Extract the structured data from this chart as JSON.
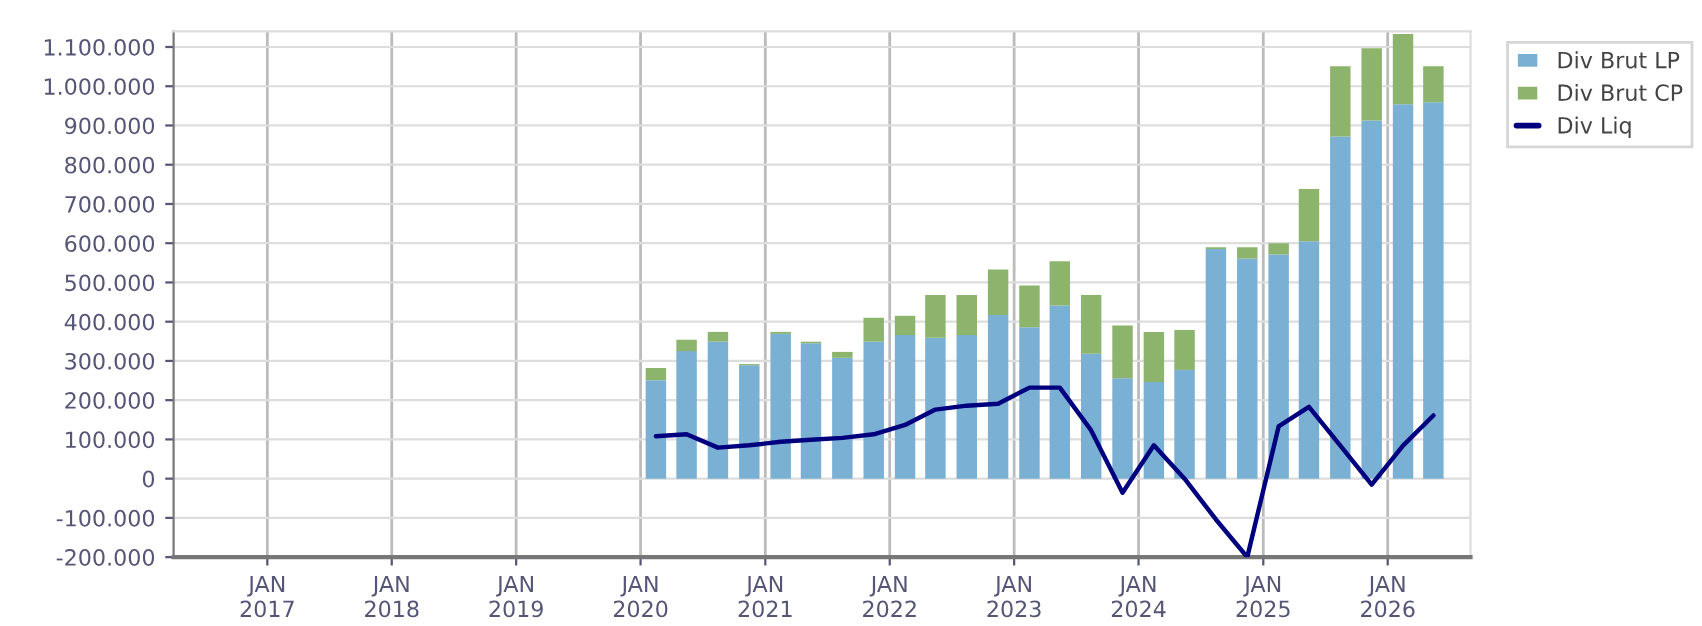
{
  "chart_data": {
    "type": "bar",
    "stacked": true,
    "x": [
      "2020-02-15",
      "2020-05-15",
      "2020-08-15",
      "2020-11-15",
      "2021-02-15",
      "2021-05-15",
      "2021-08-15",
      "2021-11-15",
      "2022-02-15",
      "2022-05-15",
      "2022-08-15",
      "2022-11-15",
      "2023-02-15",
      "2023-05-15",
      "2023-08-15",
      "2023-11-15",
      "2024-02-15",
      "2024-05-15",
      "2024-08-15",
      "2024-11-15",
      "2025-02-15",
      "2025-05-15",
      "2025-08-15",
      "2025-11-15",
      "2026-02-15",
      "2026-05-15"
    ],
    "series": [
      {
        "name": "Div Brut LP",
        "color": "#7ab0d4",
        "values": [
          251000,
          325000,
          349000,
          289000,
          369000,
          345000,
          308000,
          349000,
          366000,
          359000,
          366000,
          417000,
          386000,
          441000,
          318000,
          256000,
          246000,
          277000,
          585000,
          561000,
          571000,
          605000,
          872000,
          913000,
          954000,
          959000
        ]
      },
      {
        "name": "Div Brut CP",
        "color": "#8cb46c",
        "values": [
          31000,
          29000,
          25000,
          3000,
          5000,
          4000,
          15000,
          61000,
          49000,
          109000,
          102000,
          116000,
          106000,
          113000,
          150000,
          134000,
          128000,
          102000,
          5000,
          29000,
          29000,
          133000,
          179000,
          184000,
          179000,
          92000
        ]
      },
      {
        "name": "Div Liq",
        "type": "line",
        "color": "#00007f",
        "values": [
          108000,
          113000,
          79000,
          85000,
          94000,
          99000,
          104000,
          113000,
          137000,
          176000,
          186000,
          191000,
          232000,
          232000,
          123000,
          -36000,
          85000,
          0,
          -104000,
          -200000,
          133000,
          183000,
          84000,
          -15000,
          84000,
          161000
        ]
      }
    ],
    "xlim": [
      "2016-04-01",
      "2026-09-01"
    ],
    "xticks": [
      {
        "value": "2017-01-01",
        "label": "JAN\n2017"
      },
      {
        "value": "2018-01-01",
        "label": "JAN\n2018"
      },
      {
        "value": "2019-01-01",
        "label": "JAN\n2019"
      },
      {
        "value": "2020-01-01",
        "label": "JAN\n2020"
      },
      {
        "value": "2021-01-01",
        "label": "JAN\n2021"
      },
      {
        "value": "2022-01-01",
        "label": "JAN\n2022"
      },
      {
        "value": "2023-01-01",
        "label": "JAN\n2023"
      },
      {
        "value": "2024-01-01",
        "label": "JAN\n2024"
      },
      {
        "value": "2025-01-01",
        "label": "JAN\n2025"
      },
      {
        "value": "2026-01-01",
        "label": "JAN\n2026"
      }
    ],
    "ylim": [
      -200000,
      1140000
    ],
    "yticks": [
      {
        "value": -200000,
        "label": "-200.000"
      },
      {
        "value": -100000,
        "label": "-100.000"
      },
      0,
      {
        "value": 100000,
        "label": "100.000"
      },
      {
        "value": 200000,
        "label": "200.000"
      },
      {
        "value": 300000,
        "label": "300.000"
      },
      {
        "value": 400000,
        "label": "400.000"
      },
      {
        "value": 500000,
        "label": "500.000"
      },
      {
        "value": 600000,
        "label": "600.000"
      },
      {
        "value": 700000,
        "label": "700.000"
      },
      {
        "value": 800000,
        "label": "800.000"
      },
      {
        "value": 900000,
        "label": "900.000"
      },
      {
        "value": 1000000,
        "label": "1.000.000"
      },
      {
        "value": 1100000,
        "label": "1.100.000"
      }
    ],
    "grid": true,
    "legend": "top right",
    "marker": "none",
    "line_style": "solid"
  }
}
